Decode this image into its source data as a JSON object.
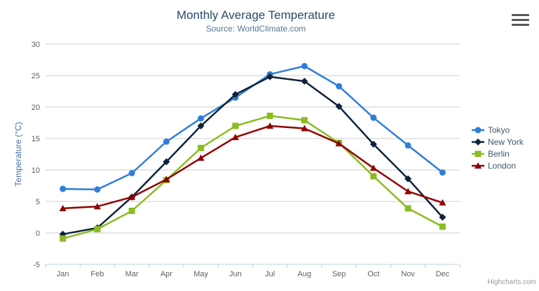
{
  "chart_data": {
    "type": "line",
    "title": "Monthly Average Temperature",
    "subtitle": "Source: WorldClimate.com",
    "categories": [
      "Jan",
      "Feb",
      "Mar",
      "Apr",
      "May",
      "Jun",
      "Jul",
      "Aug",
      "Sep",
      "Oct",
      "Nov",
      "Dec"
    ],
    "series": [
      {
        "name": "Tokyo",
        "color": "#2f7ed8",
        "marker": "circle",
        "values": [
          7.0,
          6.9,
          9.5,
          14.5,
          18.2,
          21.5,
          25.2,
          26.5,
          23.3,
          18.3,
          13.9,
          9.6
        ]
      },
      {
        "name": "New York",
        "color": "#0d233a",
        "marker": "diamond",
        "values": [
          -0.2,
          0.8,
          5.7,
          11.3,
          17.0,
          22.0,
          24.8,
          24.1,
          20.1,
          14.1,
          8.6,
          2.5
        ]
      },
      {
        "name": "Berlin",
        "color": "#8bbc21",
        "marker": "square",
        "values": [
          -0.9,
          0.6,
          3.5,
          8.4,
          13.5,
          17.0,
          18.6,
          17.9,
          14.3,
          9.0,
          3.9,
          1.0
        ]
      },
      {
        "name": "London",
        "color": "#910000",
        "marker": "triangle",
        "values": [
          3.9,
          4.2,
          5.7,
          8.5,
          11.9,
          15.2,
          17.0,
          16.6,
          14.2,
          10.3,
          6.6,
          4.8
        ]
      }
    ],
    "xlabel": "",
    "ylabel": "Temperature (°C)",
    "ylim": [
      -5,
      30
    ],
    "yticks": [
      -5,
      0,
      5,
      10,
      15,
      20,
      25,
      30
    ],
    "grid": true,
    "legend_position": "right",
    "legend_labels": [
      "Tokyo",
      "New York",
      "Berlin",
      "London"
    ]
  },
  "credits": {
    "label": "Highcharts.com"
  },
  "icons": {
    "context_menu": "hamburger-icon"
  },
  "theme": {
    "title_color": "#274b6d",
    "subtitle_color": "#55759a",
    "axis_label_color": "#606060",
    "axis_title_color": "#4572a7",
    "grid_color": "#cccccc",
    "axis_line_color": "#c0d0e0",
    "legend_text_color": "#3e576f",
    "credits_color": "#999999",
    "background": "#ffffff"
  }
}
